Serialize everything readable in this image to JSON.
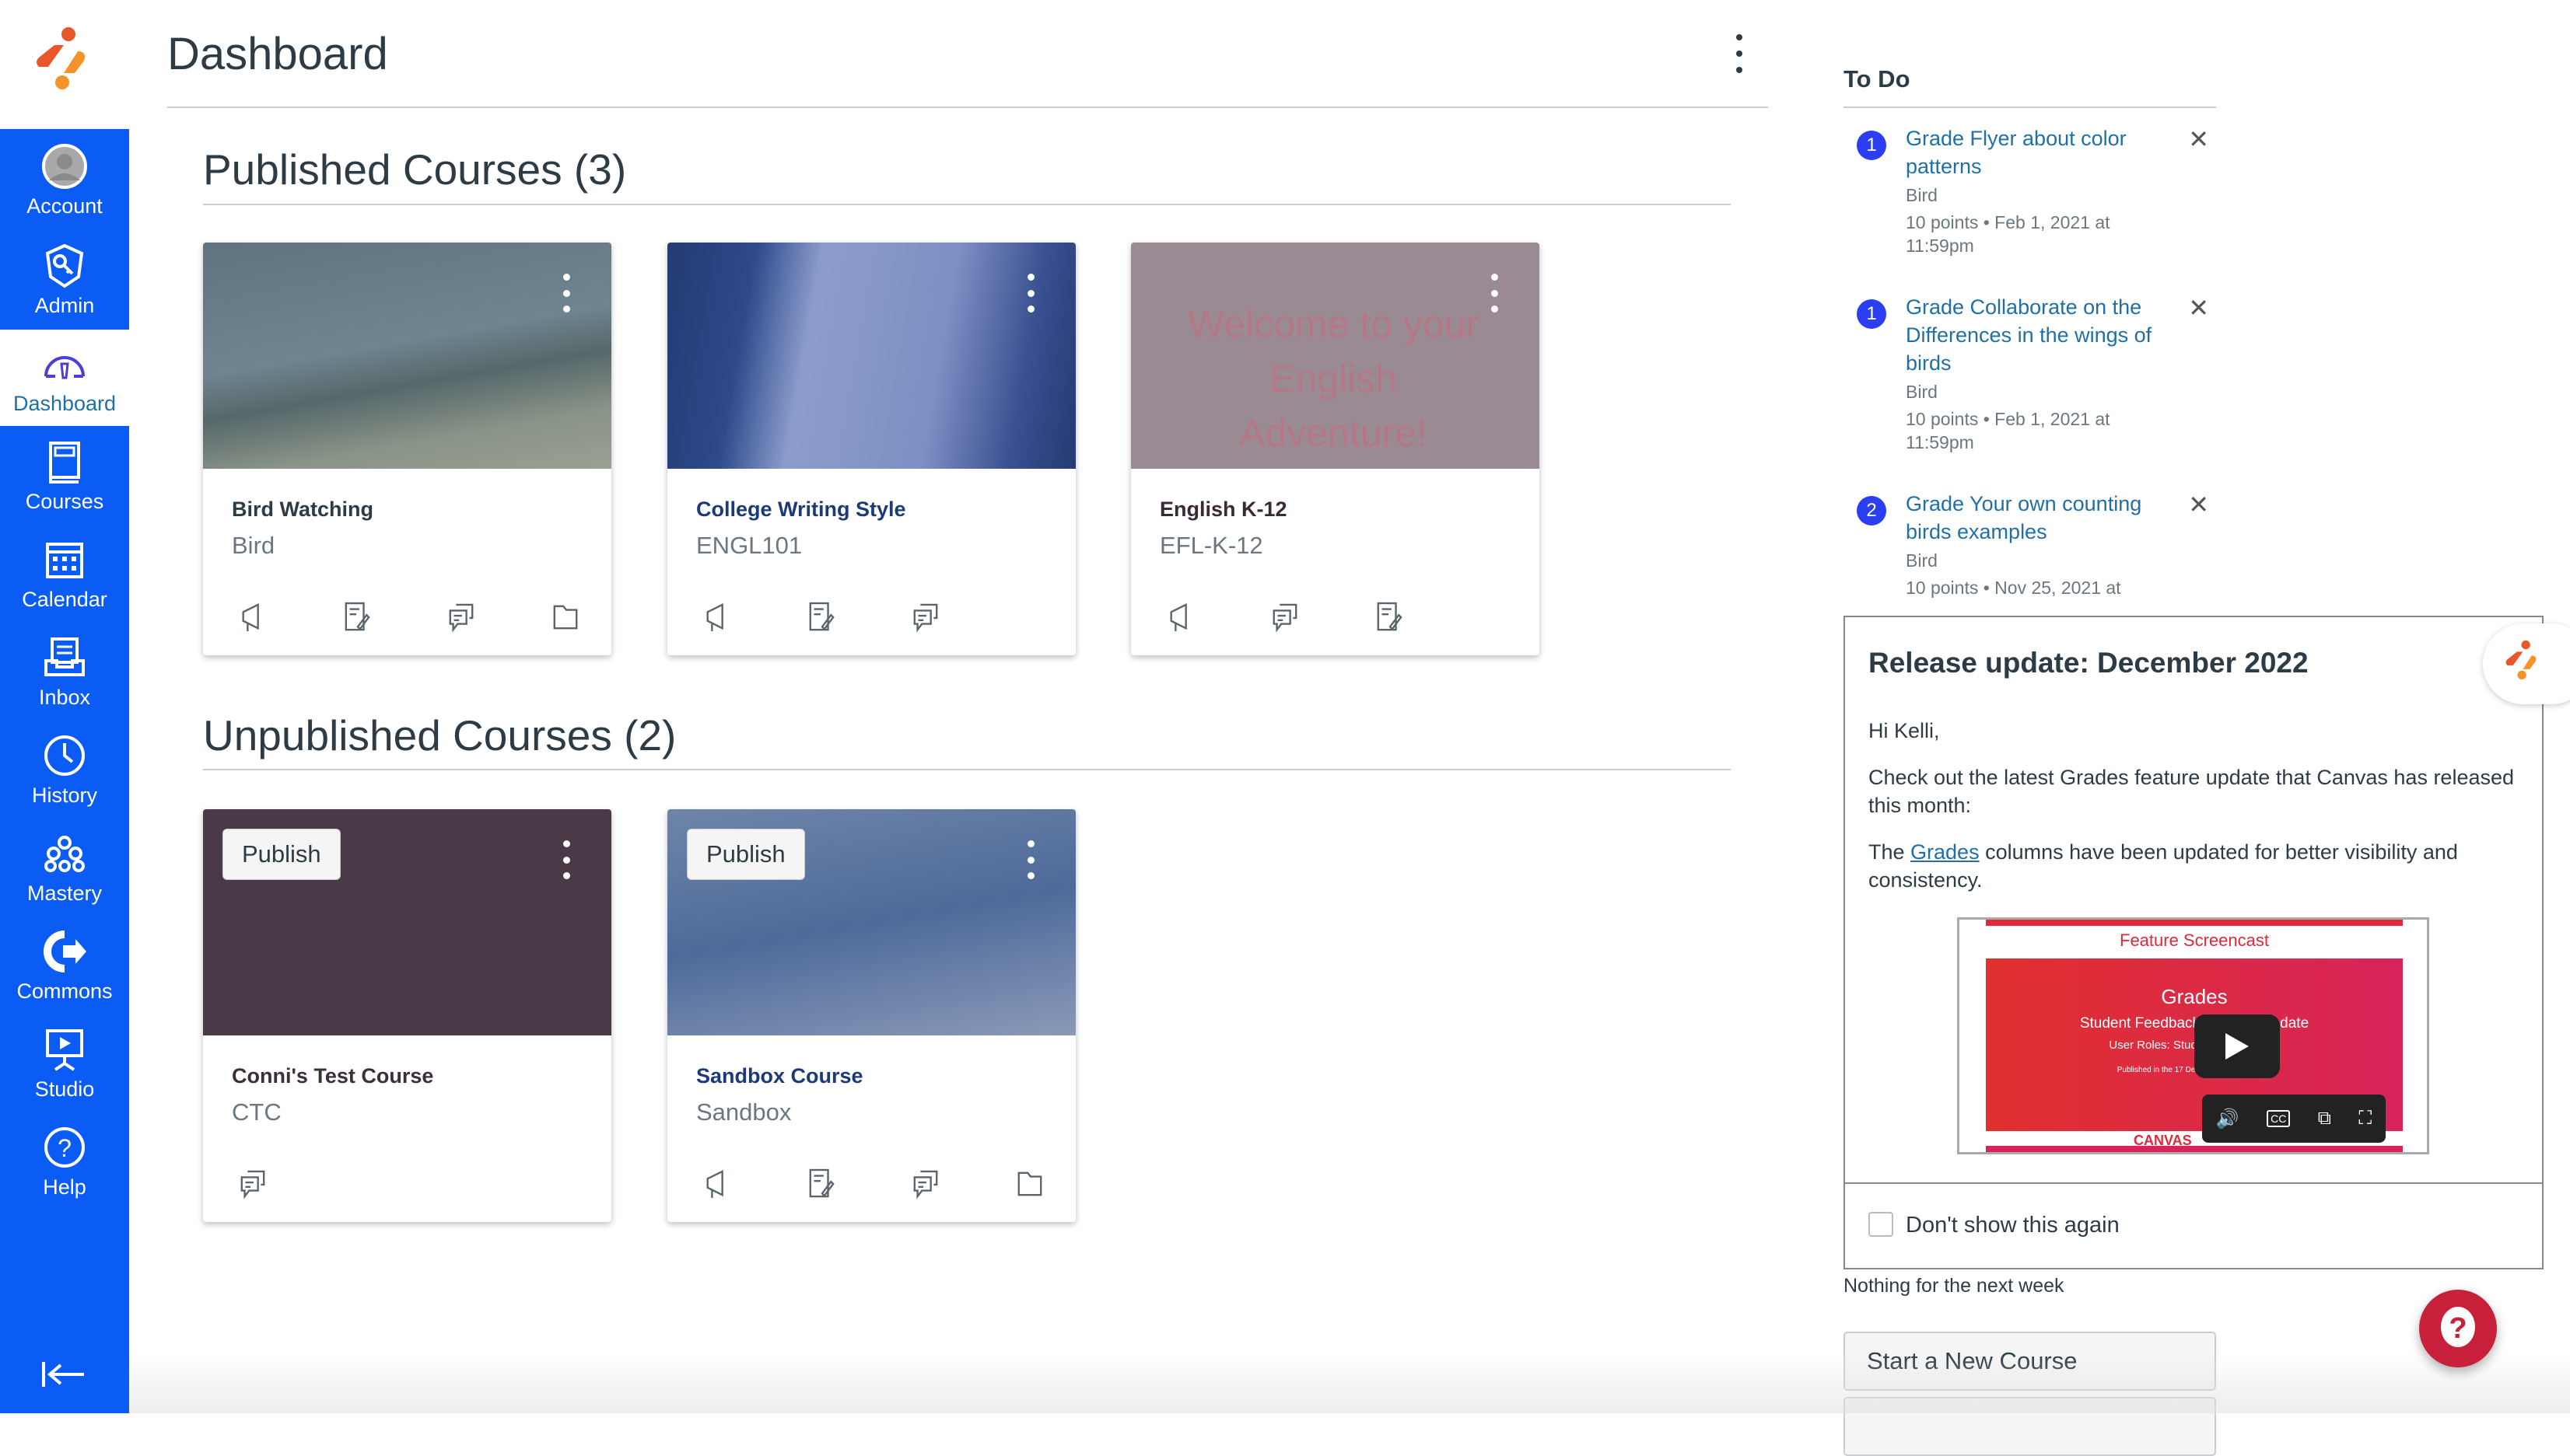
{
  "colors": {
    "nav_bg": "#0b5cf5",
    "link": "#1f6fa8",
    "badge": "#2b3ef2",
    "help": "#c8203a"
  },
  "sidebar": {
    "items": [
      {
        "label": "Account",
        "icon": "avatar-icon"
      },
      {
        "label": "Admin",
        "icon": "shield-key-icon"
      },
      {
        "label": "Dashboard",
        "icon": "dashboard-gauge-icon",
        "active": true
      },
      {
        "label": "Courses",
        "icon": "book-icon"
      },
      {
        "label": "Calendar",
        "icon": "calendar-icon"
      },
      {
        "label": "Inbox",
        "icon": "inbox-icon"
      },
      {
        "label": "History",
        "icon": "clock-icon"
      },
      {
        "label": "Mastery",
        "icon": "mastery-icon"
      },
      {
        "label": "Commons",
        "icon": "commons-icon"
      },
      {
        "label": "Studio",
        "icon": "studio-icon"
      },
      {
        "label": "Help",
        "icon": "help-icon"
      }
    ]
  },
  "header": {
    "title": "Dashboard"
  },
  "published": {
    "title": "Published Courses (3)",
    "cards": [
      {
        "name": "Bird Watching",
        "code": "Bird",
        "color": "#2d3b45"
      },
      {
        "name": "College Writing Style",
        "code": "ENGL101",
        "color": "#1c3a7a"
      },
      {
        "name": "English K-12",
        "code": "EFL-K-12",
        "color": "#3a2a36"
      }
    ]
  },
  "unpublished": {
    "title": "Unpublished Courses (2)",
    "publish_label": "Publish",
    "cards": [
      {
        "name": "Conni's Test Course",
        "code": "CTC",
        "color": "#3b2f3a"
      },
      {
        "name": "Sandbox Course",
        "code": "Sandbox",
        "color": "#1c3a7a"
      }
    ]
  },
  "todo": {
    "title": "To Do",
    "items": [
      {
        "badge": "1",
        "title": "Grade Flyer about color patterns",
        "course": "Bird",
        "meta": "10 points • Feb 1, 2021 at 11:59pm"
      },
      {
        "badge": "1",
        "title": "Grade Collaborate on the Differences in the wings of birds",
        "course": "Bird",
        "meta": "10 points • Feb 1, 2021 at 11:59pm"
      },
      {
        "badge": "2",
        "title": "Grade Your own counting birds examples",
        "course": "Bird",
        "meta": "10 points • Nov 25, 2021 at"
      }
    ]
  },
  "popup": {
    "title": "Release update: December 2022",
    "greeting": "Hi Kelli,",
    "para1": "Check out the latest Grades feature update that Canvas has released this month:",
    "para2_pre": "The ",
    "para2_link": "Grades",
    "para2_post": " columns have been updated for better visibility and consistency.",
    "video": {
      "caption": "Feature Screencast",
      "title": "Grades",
      "subtitle": "Student Feedback Visibility Update",
      "roles": "User Roles: Students, Observers",
      "published": "Published in the 17 December 2022 Release",
      "brand": "CANVAS"
    },
    "checkbox_label": "Don't show this again"
  },
  "nothing_label": "Nothing for the next week",
  "start_course_label": "Start a New Course"
}
